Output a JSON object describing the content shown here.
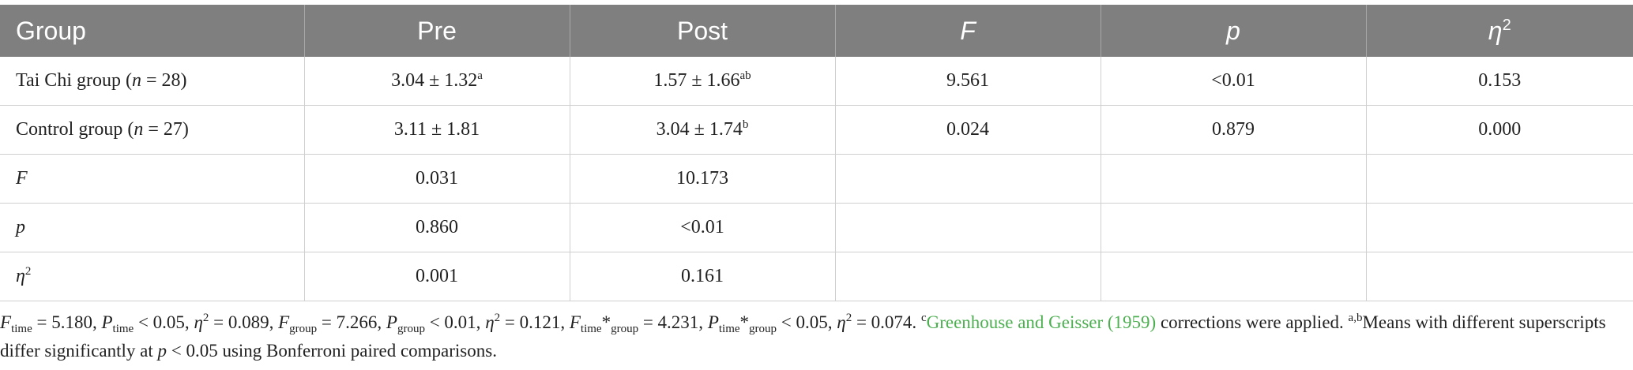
{
  "table": {
    "header": [
      "Group",
      "Pre",
      "Post",
      "F",
      "p",
      [
        "η",
        "2"
      ]
    ],
    "rows": [
      [
        [
          "Tai Chi group (",
          "n",
          " = 28)"
        ],
        [
          "3.04 ± 1.32",
          "a"
        ],
        [
          "1.57 ± 1.66",
          "ab"
        ],
        "9.561",
        "<0.01",
        "0.153"
      ],
      [
        [
          "Control group (",
          "n",
          " = 27)"
        ],
        "3.11 ± 1.81",
        [
          "3.04 ± 1.74",
          "b"
        ],
        "0.024",
        "0.879",
        "0.000"
      ],
      [
        "F",
        "0.031",
        "10.173"
      ],
      [
        "p",
        "0.860",
        "<0.01"
      ],
      [
        [
          "η",
          "2"
        ],
        "0.001",
        "0.161"
      ]
    ]
  },
  "footnote": [
    "F",
    "time",
    " = 5.180, ",
    "P",
    "time",
    " < 0.05, ",
    "η",
    "2",
    " = 0.089, ",
    "F",
    "group",
    " = 7.266, ",
    "P",
    "group",
    " < 0.01, ",
    "η",
    "2",
    " = 0.121, ",
    "F",
    "time",
    "*",
    "group",
    " = 4.231, ",
    "P",
    "time",
    "*",
    "group",
    " < 0.05, ",
    "η",
    "2",
    " = 0.074. ",
    "c",
    "Greenhouse and Geisser (1959)",
    " corrections were applied. ",
    "a,b",
    "Means with different superscripts differ significantly at ",
    "p",
    " < 0.05 using Bonferroni paired comparisons."
  ]
}
